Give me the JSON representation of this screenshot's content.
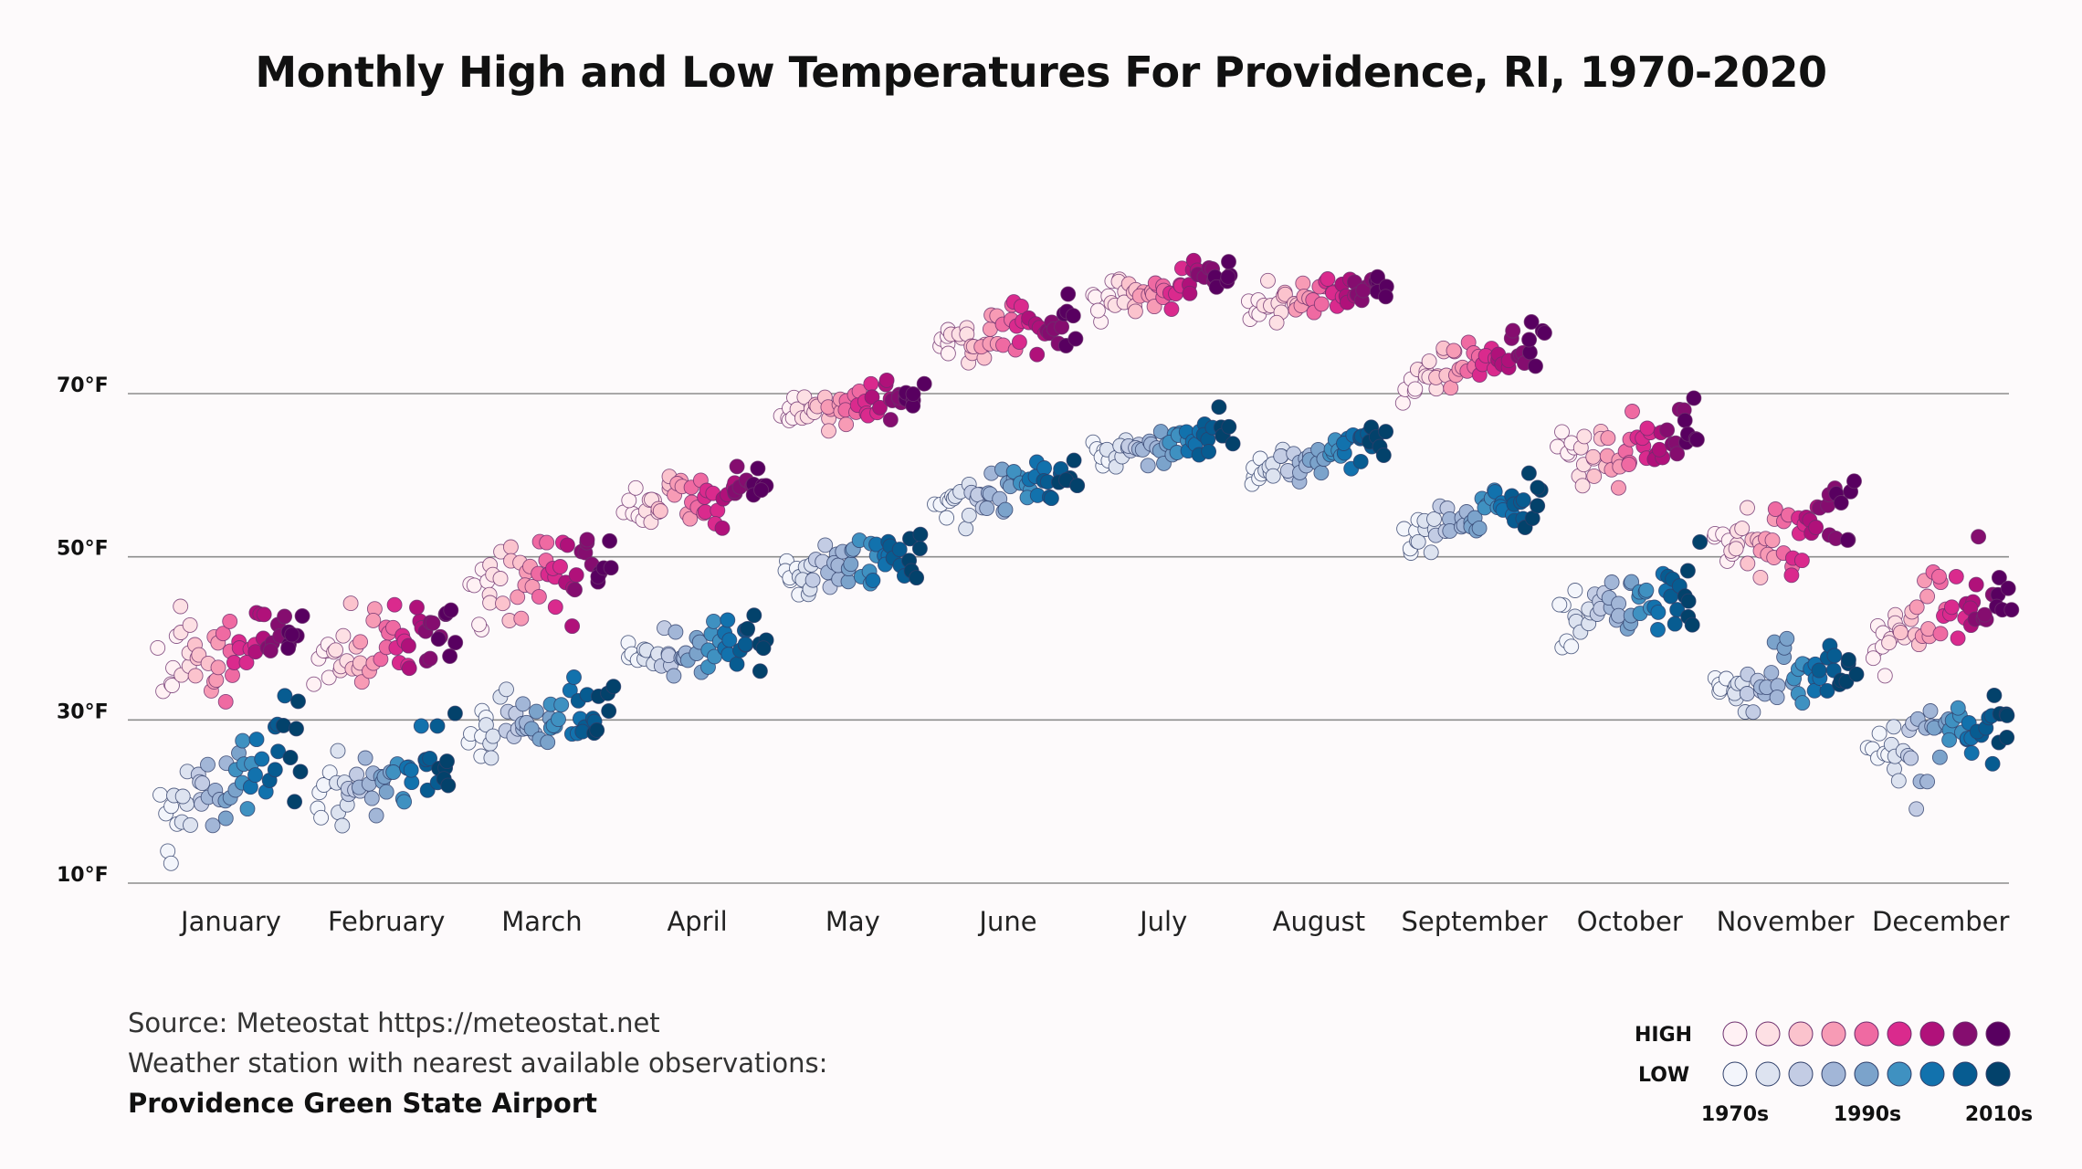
{
  "chart_data": {
    "type": "scatter",
    "title": "Monthly High and Low Temperatures For Providence, RI, 1970-2020",
    "categories": [
      "January",
      "February",
      "March",
      "April",
      "May",
      "June",
      "July",
      "August",
      "September",
      "October",
      "November",
      "December"
    ],
    "yticks": [
      "10°F",
      "30°F",
      "50°F",
      "70°F"
    ],
    "ytick_values": [
      10,
      30,
      50,
      70
    ],
    "ylim": [
      10,
      90
    ],
    "high_center": [
      38.5,
      39.5,
      47.5,
      57.5,
      68.5,
      77.5,
      83,
      82,
      74,
      63.5,
      53,
      43
    ],
    "low_center": [
      22,
      23,
      30,
      39,
      49,
      58,
      64,
      62.5,
      55,
      44,
      35,
      27
    ],
    "spread": [
      9,
      8,
      7,
      5.5,
      4.5,
      4.5,
      3.5,
      3.5,
      4.5,
      6.5,
      6.5,
      8
    ],
    "trend": [
      2.5,
      2.5,
      2,
      1.5,
      1.5,
      2,
      2,
      2,
      2.5,
      2,
      2.5,
      2.5
    ],
    "series": [
      {
        "name": "HIGH",
        "palette": [
          "#fff1f4",
          "#fde0e4",
          "#fbc3cd",
          "#f79bb5",
          "#ef6aa2",
          "#da2a8d",
          "#b0117a",
          "#850d6f",
          "#580060"
        ]
      },
      {
        "name": "LOW",
        "palette": [
          "#f3f5fb",
          "#dde3f0",
          "#c3cce4",
          "#a2b6d7",
          "#7ba3cb",
          "#3f91c1",
          "#1272ad",
          "#075c91",
          "#03426b"
        ]
      }
    ],
    "legend": {
      "high": "HIGH",
      "low": "LOW",
      "decades": [
        "1970s",
        "1990s",
        "2010s"
      ]
    }
  },
  "source": {
    "line1": "Source: Meteostat https://meteostat.net",
    "line2": "Weather station with nearest available observations:",
    "line3": "Providence Green State Airport"
  }
}
